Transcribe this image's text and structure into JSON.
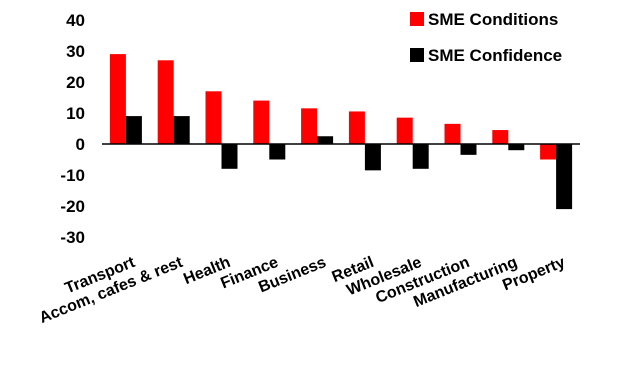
{
  "chart_data": {
    "type": "bar",
    "categories": [
      "Transport",
      "Accom, cafes & rest",
      "Health",
      "Finance",
      "Business",
      "Retail",
      "Wholesale",
      "Construction",
      "Manufacturing",
      "Property"
    ],
    "series": [
      {
        "name": "SME Conditions",
        "color": "#ff0000",
        "values": [
          29,
          27,
          17,
          14,
          11.5,
          10.5,
          8.5,
          6.5,
          4.5,
          -5
        ]
      },
      {
        "name": "SME Confidence",
        "color": "#000000",
        "values": [
          9,
          9,
          -8,
          -5,
          2.5,
          -8.5,
          -8,
          -3.5,
          -2,
          -21
        ]
      }
    ],
    "ylim": [
      -30,
      40
    ],
    "yticks": [
      40,
      30,
      20,
      10,
      0,
      -10,
      -20,
      -30
    ],
    "ytick_labels": [
      "40",
      "30",
      "20",
      "10",
      "0",
      "-10",
      "-20",
      "-30"
    ],
    "legend_position": "top-right",
    "grid": false
  }
}
